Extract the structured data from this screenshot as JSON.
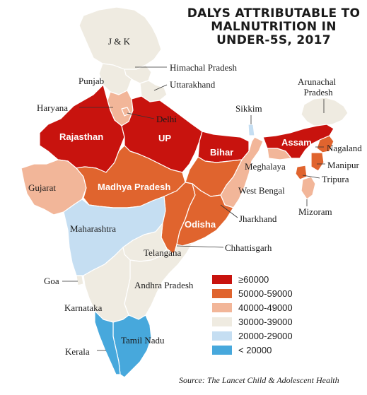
{
  "title": {
    "line1": "DALYS ATTRIBUTABLE TO",
    "line2": "MALNUTRITION IN",
    "line3": "UNDER-5S, 2017"
  },
  "colors": {
    "c60": "#c8130e",
    "c50": "#e0642e",
    "c40": "#f2b699",
    "c30": "#efebe1",
    "c20": "#c5def2",
    "c10": "#47a8dc",
    "border": "#ffffff",
    "leader": "#333333"
  },
  "legend": [
    {
      "label": "≥60000",
      "color": "#c8130e"
    },
    {
      "label": "50000-59000",
      "color": "#e0642e"
    },
    {
      "label": "40000-49000",
      "color": "#f2b699"
    },
    {
      "label": "30000-39000",
      "color": "#efebe1"
    },
    {
      "label": "20000-29000",
      "color": "#c5def2"
    },
    {
      "label": "< 20000",
      "color": "#47a8dc"
    }
  ],
  "states": {
    "jk": {
      "label": "J & K",
      "class": "30000-39000"
    },
    "himachal": {
      "label": "Himachal Pradesh",
      "class": "30000-39000"
    },
    "punjab": {
      "label": "Punjab",
      "class": "30000-39000"
    },
    "uttarakhand": {
      "label": "Uttarakhand",
      "class": "30000-39000"
    },
    "haryana": {
      "label": "Haryana",
      "class": "40000-49000"
    },
    "delhi": {
      "label": "Delhi",
      "class": "40000-49000"
    },
    "rajasthan": {
      "label": "Rajasthan",
      "class": "≥60000"
    },
    "up": {
      "label": "UP",
      "class": "≥60000"
    },
    "bihar": {
      "label": "Bihar",
      "class": "≥60000"
    },
    "sikkim": {
      "label": "Sikkim",
      "class": "20000-29000"
    },
    "arunachal": {
      "label": "Arunachal\nPradesh",
      "line1": "Arunachal",
      "line2": "Pradesh",
      "class": "30000-39000"
    },
    "assam": {
      "label": "Assam",
      "class": "≥60000"
    },
    "nagaland": {
      "label": "Nagaland",
      "class": "50000-59000"
    },
    "meghalaya": {
      "label": "Meghalaya",
      "class": "40000-49000"
    },
    "manipur": {
      "label": "Manipur",
      "class": "50000-59000"
    },
    "tripura": {
      "label": "Tripura",
      "class": "50000-59000"
    },
    "mizoram": {
      "label": "Mizoram",
      "class": "40000-49000"
    },
    "gujarat": {
      "label": "Gujarat",
      "class": "40000-49000"
    },
    "mp": {
      "label": "Madhya Pradesh",
      "class": "50000-59000"
    },
    "westbengal": {
      "label": "West Bengal",
      "class": "40000-49000"
    },
    "jharkhand": {
      "label": "Jharkhand",
      "class": "50000-59000"
    },
    "odisha": {
      "label": "Odisha",
      "class": "50000-59000"
    },
    "chhattisgarh": {
      "label": "Chhattisgarh",
      "class": "50000-59000"
    },
    "maharashtra": {
      "label": "Maharashtra",
      "class": "20000-29000"
    },
    "telangana": {
      "label": "Telangana",
      "class": "30000-39000"
    },
    "andhra": {
      "label": "Andhra Pradesh",
      "class": "30000-39000"
    },
    "goa": {
      "label": "Goa",
      "class": "30000-39000"
    },
    "karnataka": {
      "label": "Karnataka",
      "class": "30000-39000"
    },
    "tamilnadu": {
      "label": "Tamil Nadu",
      "class": "< 20000"
    },
    "kerala": {
      "label": "Kerala",
      "class": "< 20000"
    }
  },
  "source": "Source: The Lancet Child & Adolescent Health"
}
